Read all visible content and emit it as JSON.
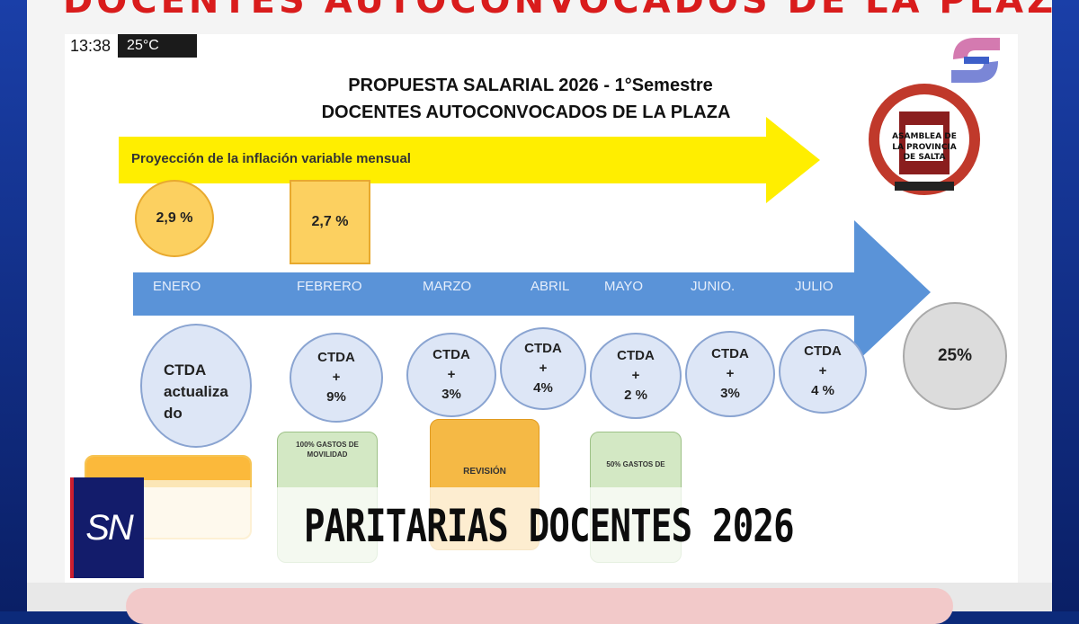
{
  "overlay": {
    "time": "13:38",
    "temperature": "25°C",
    "top_banner": "DOCENTES AUTOCONVOCADOS DE LA PLAZA",
    "channel_logo": "SN",
    "headline": "PARITARIAS DOCENTES 2026"
  },
  "slide": {
    "title_line1": "PROPUESTA SALARIAL 2026 - 1°Semestre",
    "title_line2": "DOCENTES AUTOCONVOCADOS DE LA PLAZA",
    "seal_text": "ASAMBLEA DE LA PROVINCIA DE SALTA",
    "inflation_label": "Proyección de la inflación variable mensual",
    "inflation": [
      {
        "month": "ENERO",
        "value": "2,9 %"
      },
      {
        "month": "FEBRERO",
        "value": "2,7 %"
      }
    ],
    "months": [
      "ENERO",
      "FEBRERO",
      "MARZO",
      "ABRIL",
      "MAYO",
      "JUNIO.",
      "JULIO"
    ],
    "ctda_first": {
      "line1": "CTDA",
      "line2": "actualiza",
      "line3": "do"
    },
    "ctda": [
      {
        "line1": "CTDA",
        "plus": "+",
        "value": "9%"
      },
      {
        "line1": "CTDA",
        "plus": "+",
        "value": "3%"
      },
      {
        "line1": "CTDA",
        "plus": "+",
        "value": "4%"
      },
      {
        "line1": "CTDA",
        "plus": "+",
        "value": "2 %"
      },
      {
        "line1": "CTDA",
        "plus": "+",
        "value": "3%"
      },
      {
        "line1": "CTDA",
        "plus": "+",
        "value": "4 %"
      }
    ],
    "total": "25%",
    "notes": {
      "movilidad_100": "100% GASTOS DE MOVILIDAD",
      "revision": "REVISIÓN",
      "movilidad_50": "50% GASTOS DE"
    },
    "colors": {
      "yellow_arrow": "#ffee00",
      "blue_arrow": "#5a93d8",
      "infl_fill": "#fcd060",
      "ctda_fill": "#dde6f6",
      "note_green": "#d3e8c4",
      "note_orange": "#f5b945"
    }
  }
}
